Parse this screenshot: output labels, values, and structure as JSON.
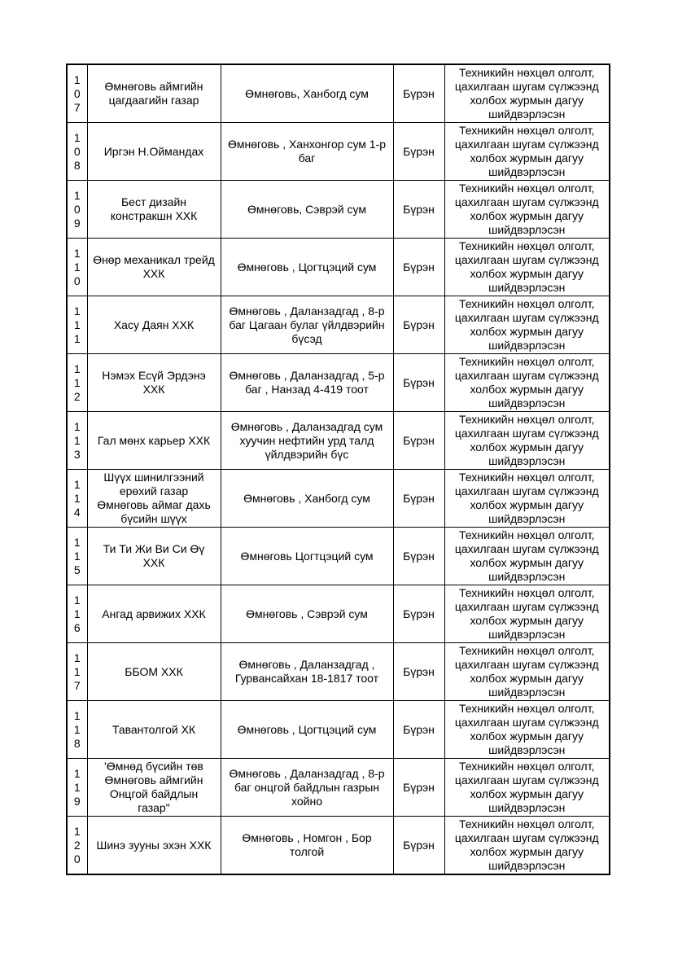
{
  "page": {
    "background_color": "#ffffff",
    "text_color": "#000000",
    "border_color": "#000000"
  },
  "table": {
    "column_keys": [
      "no",
      "name",
      "address",
      "status",
      "decision"
    ],
    "rows": [
      {
        "no": "107",
        "name": "Өмнөговь аймгийн цагдаагийн газар",
        "address": "Өмнөговь, Ханбогд сум",
        "status": "Бүрэн",
        "decision": "Техникийн нөхцөл олголт, цахилгаан шугам сүлжээнд холбох журмын дагуу шийдвэрлэсэн"
      },
      {
        "no": "108",
        "name": "Иргэн Н.Оймандах",
        "address": "Өмнөговь , Ханхонгор сум 1-р баг",
        "status": "Бүрэн",
        "decision": "Техникийн нөхцөл олголт, цахилгаан шугам сүлжээнд холбох журмын дагуу шийдвэрлэсэн"
      },
      {
        "no": "109",
        "name": "Бест дизайн констракшн ХХК",
        "address": "Өмнөговь, Сэврэй сум",
        "status": "Бүрэн",
        "decision": "Техникийн нөхцөл олголт, цахилгаан шугам сүлжээнд холбох журмын дагуу шийдвэрлэсэн"
      },
      {
        "no": "110",
        "name": "Өнөр механикал трейд ХХК",
        "address": "Өмнөговь , Цогтцэций сум",
        "status": "Бүрэн",
        "decision": "Техникийн нөхцөл олголт, цахилгаан шугам сүлжээнд холбох журмын дагуу шийдвэрлэсэн"
      },
      {
        "no": "111",
        "name": "Хасу Даян ХХК",
        "address": "Өмнөговь , Даланзадгад , 8-р баг Цагаан булаг үйлдвэрийн бүсэд",
        "status": "Бүрэн",
        "decision": "Техникийн нөхцөл олголт, цахилгаан шугам сүлжээнд холбох журмын дагуу шийдвэрлэсэн"
      },
      {
        "no": "112",
        "name": "Нэмэх Есүй Эрдэнэ ХХК",
        "address": "Өмнөговь , Даланзадгад , 5-р баг , Нанзад 4-419 тоот",
        "status": "Бүрэн",
        "decision": "Техникийн нөхцөл олголт, цахилгаан шугам сүлжээнд холбох журмын дагуу шийдвэрлэсэн"
      },
      {
        "no": "113",
        "name": "Гал мөнх карьер ХХК",
        "address": "Өмнөговь , Даланзадгад сум хуучин нефтийн урд талд үйлдвэрийн бүс",
        "status": "Бүрэн",
        "decision": "Техникийн нөхцөл олголт, цахилгаан шугам сүлжээнд холбох журмын дагуу шийдвэрлэсэн"
      },
      {
        "no": "114",
        "name": "Шүүх шинилгээний ерөхий газар Өмнөговь аймаг дахь бүсийн шүүх",
        "address": "Өмнөговь , Ханбогд сум",
        "status": "Бүрэн",
        "decision": "Техникийн нөхцөл олголт, цахилгаан шугам сүлжээнд холбох журмын дагуу шийдвэрлэсэн"
      },
      {
        "no": "115",
        "name": "Ти Ти Жи Ви Си Өү ХХК",
        "address": "Өмнөговь Цогтцэций сум",
        "status": "Бүрэн",
        "decision": "Техникийн нөхцөл олголт, цахилгаан шугам сүлжээнд холбох журмын дагуу шийдвэрлэсэн"
      },
      {
        "no": "116",
        "name": "Ангад арвижих ХХК",
        "address": "Өмнөговь , Сэврэй сум",
        "status": "Бүрэн",
        "decision": "Техникийн нөхцөл олголт, цахилгаан шугам сүлжээнд холбох журмын дагуу шийдвэрлэсэн"
      },
      {
        "no": "117",
        "name": "ББОМ ХХК",
        "address": "Өмнөговь , Даланзадгад , Гурвансайхан 18-1817 тоот",
        "status": "Бүрэн",
        "decision": "Техникийн нөхцөл олголт, цахилгаан шугам сүлжээнд холбох журмын дагуу шийдвэрлэсэн"
      },
      {
        "no": "118",
        "name": "Тавантолгой ХК",
        "address": "Өмнөговь , Цогтцэций сум",
        "status": "Бүрэн",
        "decision": "Техникийн нөхцөл олголт, цахилгаан шугам сүлжээнд холбох журмын дагуу шийдвэрлэсэн"
      },
      {
        "no": "119",
        "name": "'Өмнөд бүсийн төв Өмнөговь аймгийн Онцгой байдлын газар\"",
        "address": "Өмнөговь , Даланзадгад , 8-р баг онцгой байдлын газрын хойно",
        "status": "Бүрэн",
        "decision": "Техникийн нөхцөл олголт, цахилгаан шугам сүлжээнд холбох журмын дагуу шийдвэрлэсэн"
      },
      {
        "no": "120",
        "name": "Шинэ зууны эхэн ХХК",
        "address": "Өмнөговь , Номгон , Бор толгой",
        "status": "Бүрэн",
        "decision": "Техникийн нөхцөл олголт, цахилгаан шугам сүлжээнд холбох журмын дагуу шийдвэрлэсэн"
      }
    ]
  }
}
